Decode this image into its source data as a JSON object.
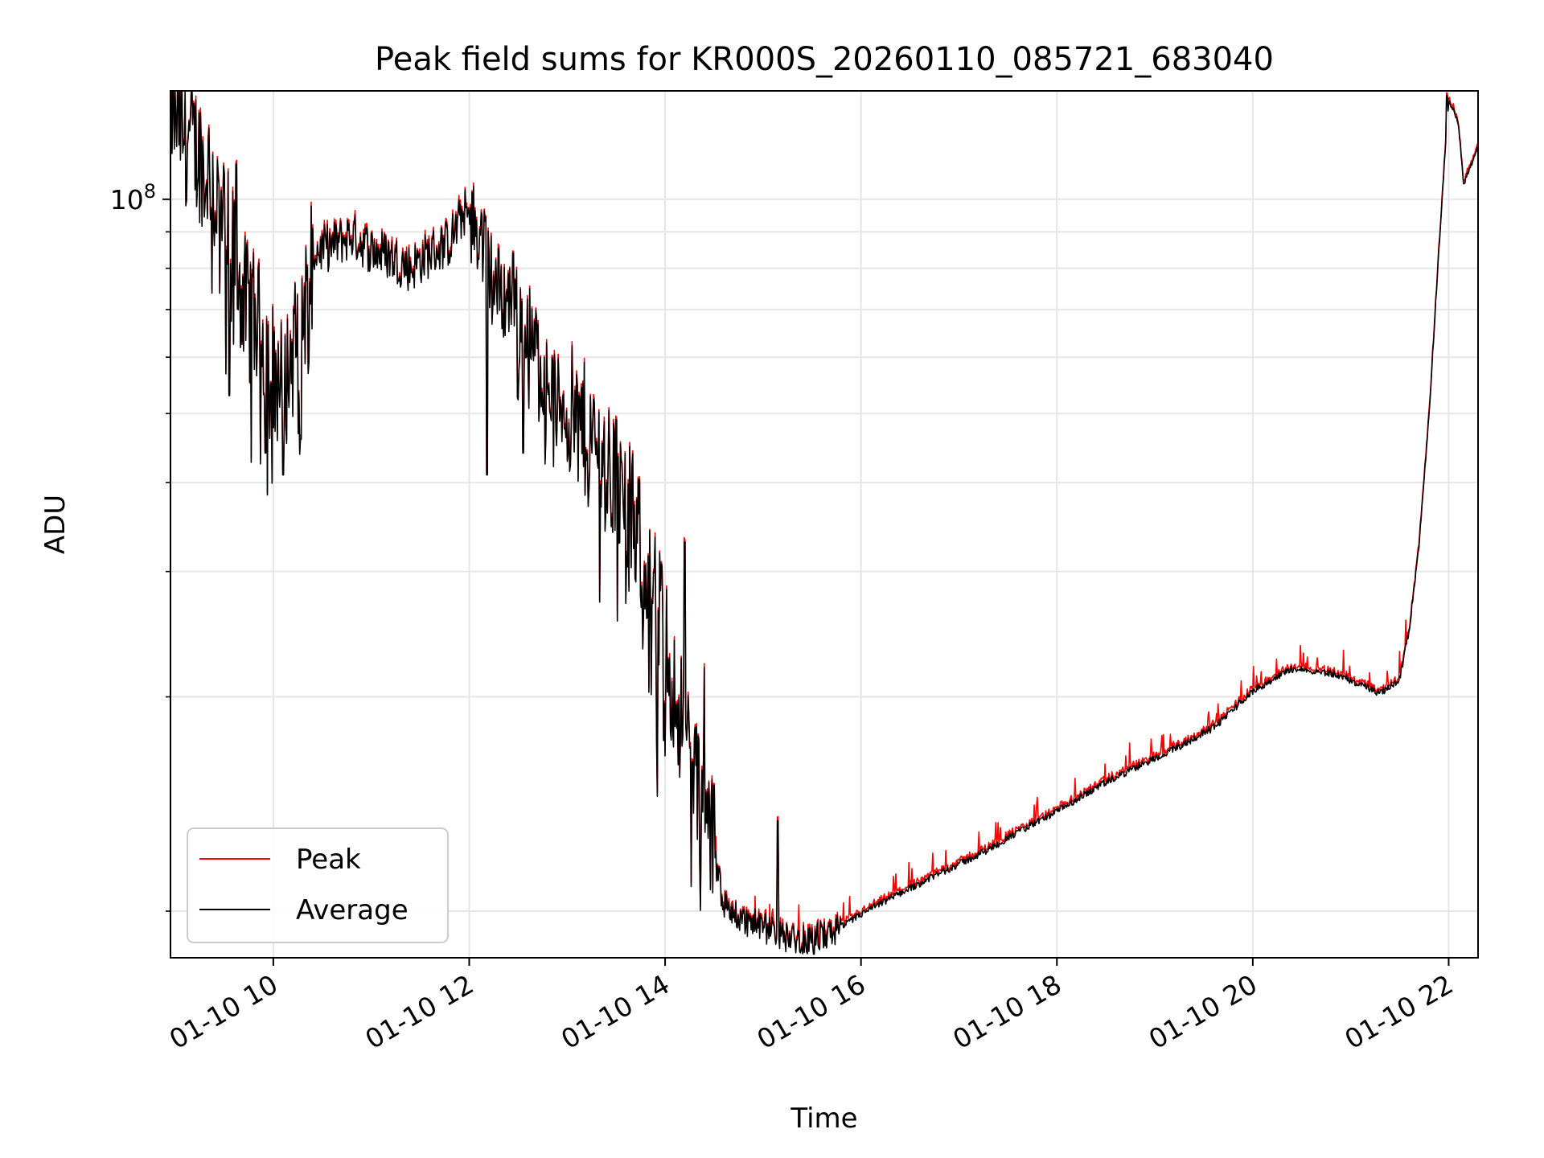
{
  "chart_data": {
    "type": "line",
    "title": "Peak field sums for KR000S_20260110_085721_683040",
    "xlabel": "Time",
    "ylabel": "ADU",
    "yscale": "log",
    "xlim": [
      8.95,
      22.3
    ],
    "ylim": [
      8600000.0,
      142000000.0
    ],
    "grid": true,
    "legend_position": "lower-left",
    "x_ticks": [
      {
        "value": 10,
        "label": "01-10 10"
      },
      {
        "value": 12,
        "label": "01-10 12"
      },
      {
        "value": 14,
        "label": "01-10 14"
      },
      {
        "value": 16,
        "label": "01-10 16"
      },
      {
        "value": 18,
        "label": "01-10 18"
      },
      {
        "value": 20,
        "label": "01-10 20"
      },
      {
        "value": 22,
        "label": "01-10 22"
      }
    ],
    "y_major_ticks": [
      {
        "value": 100000000,
        "base": "10",
        "exponent": "8"
      }
    ],
    "y_minor_ticks": [
      10000000,
      20000000,
      30000000,
      40000000,
      50000000,
      60000000,
      70000000,
      80000000,
      90000000
    ],
    "series": [
      {
        "name": "Peak",
        "color": "#ff0000"
      },
      {
        "name": "Average",
        "color": "#000000"
      }
    ],
    "average_control_points": [
      [
        8.95,
        135000000.0
      ],
      [
        9.1,
        125000000.0
      ],
      [
        9.25,
        115000000.0
      ],
      [
        9.35,
        110000000.0
      ],
      [
        9.45,
        96000000.0
      ],
      [
        9.6,
        83000000.0
      ],
      [
        9.7,
        72000000.0
      ],
      [
        9.8,
        68000000.0
      ],
      [
        9.9,
        64000000.0
      ],
      [
        10.0,
        58000000.0
      ],
      [
        10.1,
        54000000.0
      ],
      [
        10.2,
        61000000.0
      ],
      [
        10.3,
        69000000.0
      ],
      [
        10.4,
        84000000.0
      ],
      [
        10.6,
        86000000.0
      ],
      [
        10.8,
        89000000.0
      ],
      [
        11.0,
        85000000.0
      ],
      [
        11.2,
        83000000.0
      ],
      [
        11.4,
        80000000.0
      ],
      [
        11.6,
        84000000.0
      ],
      [
        11.8,
        87000000.0
      ],
      [
        11.95,
        96000000.0
      ],
      [
        12.1,
        90000000.0
      ],
      [
        12.25,
        76000000.0
      ],
      [
        12.4,
        72000000.0
      ],
      [
        12.6,
        66000000.0
      ],
      [
        12.75,
        58000000.0
      ],
      [
        12.9,
        52000000.0
      ],
      [
        13.05,
        50000000.0
      ],
      [
        13.2,
        47000000.0
      ],
      [
        13.35,
        43500000.0
      ],
      [
        13.5,
        39500000.0
      ],
      [
        13.65,
        36000000.0
      ],
      [
        13.8,
        31000000.0
      ],
      [
        13.9,
        27500000.0
      ],
      [
        14.0,
        24000000.0
      ],
      [
        14.1,
        20000000.0
      ],
      [
        14.25,
        17200000.0
      ],
      [
        14.35,
        14500000.0
      ],
      [
        14.45,
        13000000.0
      ],
      [
        14.6,
        10200000.0
      ],
      [
        14.8,
        9700000.0
      ],
      [
        15.0,
        9500000.0
      ],
      [
        15.2,
        9200000.0
      ],
      [
        15.45,
        9100000.0
      ],
      [
        15.7,
        9300000.0
      ],
      [
        16.0,
        9900000.0
      ],
      [
        16.4,
        10600000.0
      ],
      [
        16.8,
        11300000.0
      ],
      [
        17.2,
        12000000.0
      ],
      [
        17.6,
        12900000.0
      ],
      [
        18.0,
        13800000.0
      ],
      [
        18.4,
        14900000.0
      ],
      [
        18.8,
        15900000.0
      ],
      [
        19.2,
        16900000.0
      ],
      [
        19.6,
        18100000.0
      ],
      [
        20.0,
        20400000.0
      ],
      [
        20.4,
        21900000.0
      ],
      [
        20.8,
        21600000.0
      ],
      [
        21.1,
        20800000.0
      ],
      [
        21.3,
        20200000.0
      ],
      [
        21.5,
        21200000.0
      ],
      [
        21.6,
        25000000.0
      ],
      [
        21.7,
        33000000.0
      ],
      [
        21.8,
        50000000.0
      ],
      [
        21.9,
        85000000.0
      ],
      [
        22.0,
        138000000.0
      ],
      [
        22.1,
        128000000.0
      ],
      [
        22.15,
        105000000.0
      ],
      [
        22.3,
        118000000.0
      ]
    ],
    "notable_dips": [
      [
        9.55,
        53000000.0
      ],
      [
        9.92,
        44000000.0
      ],
      [
        10.1,
        41000000.0
      ],
      [
        10.28,
        46000000.0
      ],
      [
        12.18,
        41000000.0
      ],
      [
        12.55,
        44000000.0
      ],
      [
        13.5,
        27000000.0
      ],
      [
        13.92,
        14500000.0
      ],
      [
        14.28,
        16200000.0
      ],
      [
        15.52,
        8700000.0
      ]
    ],
    "notable_peaks": [
      [
        9.62,
        112000000.0
      ],
      [
        12.45,
        84000000.0
      ],
      [
        13.5,
        49000000.0
      ],
      [
        14.2,
        33000000.0
      ],
      [
        14.4,
        22000000.0
      ],
      [
        14.5,
        15000000.0
      ],
      [
        15.15,
        13400000.0
      ],
      [
        21.98,
        140000000.0
      ]
    ]
  }
}
